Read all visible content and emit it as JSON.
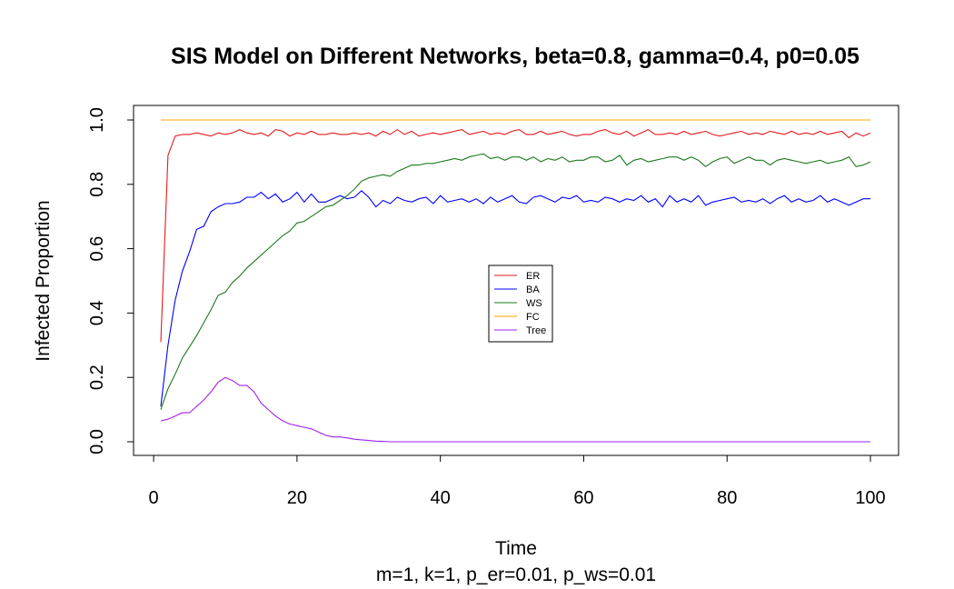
{
  "chart_data": {
    "type": "line",
    "title": "SIS Model on Different Networks, beta=0.8, gamma=0.4, p0=0.05",
    "xlabel": "Time",
    "subtitle": "m=1, k=1, p_er=0.01, p_ws=0.01",
    "ylabel": "Infected Proportion",
    "xlim": [
      1,
      100
    ],
    "ylim": [
      0,
      1
    ],
    "xticks": [
      "0",
      "20",
      "40",
      "60",
      "80",
      "100"
    ],
    "yticks": [
      "0.0",
      "0.2",
      "0.4",
      "0.6",
      "0.8",
      "1.0"
    ],
    "legend_position": "center",
    "grid": false,
    "x": [
      1,
      2,
      3,
      4,
      5,
      6,
      7,
      8,
      9,
      10,
      11,
      12,
      13,
      14,
      15,
      16,
      17,
      18,
      19,
      20,
      21,
      22,
      23,
      24,
      25,
      26,
      27,
      28,
      29,
      30,
      31,
      32,
      33,
      34,
      35,
      36,
      37,
      38,
      39,
      40,
      41,
      42,
      43,
      44,
      45,
      46,
      47,
      48,
      49,
      50,
      51,
      52,
      53,
      54,
      55,
      56,
      57,
      58,
      59,
      60,
      61,
      62,
      63,
      64,
      65,
      66,
      67,
      68,
      69,
      70,
      71,
      72,
      73,
      74,
      75,
      76,
      77,
      78,
      79,
      80,
      81,
      82,
      83,
      84,
      85,
      86,
      87,
      88,
      89,
      90,
      91,
      92,
      93,
      94,
      95,
      96,
      97,
      98,
      99,
      100
    ],
    "series": [
      {
        "name": "ER",
        "color": "#e41a1c",
        "values": [
          0.31,
          0.89,
          0.95,
          0.955,
          0.955,
          0.96,
          0.955,
          0.95,
          0.96,
          0.955,
          0.96,
          0.97,
          0.96,
          0.955,
          0.96,
          0.95,
          0.97,
          0.965,
          0.95,
          0.96,
          0.955,
          0.965,
          0.955,
          0.955,
          0.96,
          0.955,
          0.955,
          0.96,
          0.955,
          0.96,
          0.95,
          0.965,
          0.955,
          0.97,
          0.955,
          0.965,
          0.95,
          0.955,
          0.96,
          0.955,
          0.96,
          0.965,
          0.97,
          0.955,
          0.96,
          0.965,
          0.955,
          0.96,
          0.955,
          0.965,
          0.97,
          0.955,
          0.955,
          0.965,
          0.955,
          0.96,
          0.965,
          0.955,
          0.95,
          0.955,
          0.955,
          0.965,
          0.97,
          0.96,
          0.955,
          0.965,
          0.95,
          0.96,
          0.97,
          0.955,
          0.955,
          0.96,
          0.955,
          0.965,
          0.955,
          0.96,
          0.965,
          0.955,
          0.95,
          0.955,
          0.96,
          0.965,
          0.955,
          0.96,
          0.955,
          0.965,
          0.96,
          0.955,
          0.965,
          0.955,
          0.96,
          0.955,
          0.965,
          0.955,
          0.96,
          0.965,
          0.945,
          0.96,
          0.95,
          0.96
        ]
      },
      {
        "name": "BA",
        "color": "#0000ff",
        "values": [
          0.11,
          0.3,
          0.44,
          0.53,
          0.59,
          0.66,
          0.67,
          0.715,
          0.73,
          0.74,
          0.74,
          0.745,
          0.76,
          0.76,
          0.775,
          0.755,
          0.77,
          0.745,
          0.755,
          0.775,
          0.745,
          0.77,
          0.745,
          0.745,
          0.755,
          0.765,
          0.755,
          0.76,
          0.78,
          0.76,
          0.73,
          0.75,
          0.74,
          0.76,
          0.75,
          0.745,
          0.755,
          0.76,
          0.74,
          0.765,
          0.745,
          0.75,
          0.755,
          0.745,
          0.755,
          0.74,
          0.76,
          0.745,
          0.755,
          0.765,
          0.745,
          0.74,
          0.76,
          0.765,
          0.755,
          0.745,
          0.76,
          0.755,
          0.765,
          0.745,
          0.75,
          0.745,
          0.76,
          0.755,
          0.745,
          0.755,
          0.75,
          0.765,
          0.745,
          0.755,
          0.73,
          0.765,
          0.745,
          0.755,
          0.745,
          0.765,
          0.735,
          0.745,
          0.75,
          0.755,
          0.76,
          0.745,
          0.75,
          0.745,
          0.755,
          0.74,
          0.755,
          0.765,
          0.745,
          0.755,
          0.745,
          0.75,
          0.765,
          0.745,
          0.755,
          0.745,
          0.735,
          0.745,
          0.755,
          0.755
        ]
      },
      {
        "name": "WS",
        "color": "#1a7a1a",
        "values": [
          0.1,
          0.165,
          0.21,
          0.26,
          0.295,
          0.33,
          0.37,
          0.41,
          0.455,
          0.465,
          0.495,
          0.515,
          0.54,
          0.56,
          0.58,
          0.6,
          0.62,
          0.64,
          0.655,
          0.68,
          0.685,
          0.7,
          0.715,
          0.73,
          0.735,
          0.75,
          0.765,
          0.785,
          0.81,
          0.82,
          0.825,
          0.83,
          0.825,
          0.84,
          0.85,
          0.86,
          0.86,
          0.865,
          0.865,
          0.87,
          0.875,
          0.88,
          0.875,
          0.885,
          0.89,
          0.895,
          0.88,
          0.885,
          0.875,
          0.885,
          0.885,
          0.875,
          0.885,
          0.87,
          0.88,
          0.875,
          0.885,
          0.87,
          0.875,
          0.875,
          0.885,
          0.885,
          0.87,
          0.875,
          0.89,
          0.86,
          0.875,
          0.88,
          0.87,
          0.875,
          0.88,
          0.885,
          0.885,
          0.875,
          0.885,
          0.875,
          0.855,
          0.87,
          0.88,
          0.885,
          0.865,
          0.875,
          0.885,
          0.875,
          0.875,
          0.86,
          0.875,
          0.88,
          0.875,
          0.87,
          0.865,
          0.87,
          0.875,
          0.865,
          0.87,
          0.875,
          0.885,
          0.855,
          0.86,
          0.87
        ]
      },
      {
        "name": "FC",
        "color": "#ffa500",
        "values": [
          1,
          1,
          1,
          1,
          1,
          1,
          1,
          1,
          1,
          1,
          1,
          1,
          1,
          1,
          1,
          1,
          1,
          1,
          1,
          1,
          1,
          1,
          1,
          1,
          1,
          1,
          1,
          1,
          1,
          1,
          1,
          1,
          1,
          1,
          1,
          1,
          1,
          1,
          1,
          1,
          1,
          1,
          1,
          1,
          1,
          1,
          1,
          1,
          1,
          1,
          1,
          1,
          1,
          1,
          1,
          1,
          1,
          1,
          1,
          1,
          1,
          1,
          1,
          1,
          1,
          1,
          1,
          1,
          1,
          1,
          1,
          1,
          1,
          1,
          1,
          1,
          1,
          1,
          1,
          1,
          1,
          1,
          1,
          1,
          1,
          1,
          1,
          1,
          1,
          1,
          1,
          1,
          1,
          1,
          1,
          1,
          1,
          1,
          1,
          1
        ]
      },
      {
        "name": "Tree",
        "color": "#a020f0",
        "values": [
          0.065,
          0.07,
          0.08,
          0.09,
          0.09,
          0.11,
          0.13,
          0.155,
          0.185,
          0.2,
          0.19,
          0.175,
          0.175,
          0.155,
          0.12,
          0.1,
          0.08,
          0.065,
          0.055,
          0.05,
          0.045,
          0.04,
          0.03,
          0.02,
          0.015,
          0.015,
          0.012,
          0.008,
          0.006,
          0.004,
          0.002,
          0.001,
          0,
          0,
          0,
          0,
          0,
          0,
          0,
          0,
          0,
          0,
          0,
          0,
          0,
          0,
          0,
          0,
          0,
          0,
          0,
          0,
          0,
          0,
          0,
          0,
          0,
          0,
          0,
          0,
          0,
          0,
          0,
          0,
          0,
          0,
          0,
          0,
          0,
          0,
          0,
          0,
          0,
          0,
          0,
          0,
          0,
          0,
          0,
          0,
          0,
          0,
          0,
          0,
          0,
          0,
          0,
          0,
          0,
          0,
          0,
          0,
          0,
          0,
          0,
          0,
          0,
          0,
          0,
          0
        ]
      }
    ]
  }
}
